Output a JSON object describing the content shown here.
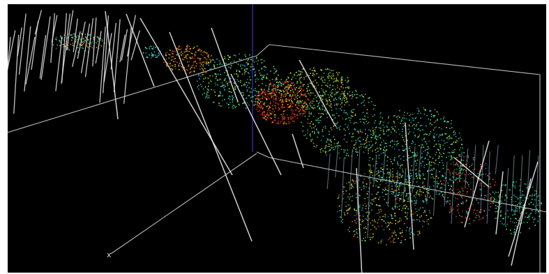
{
  "viewer": {
    "background": "#000000",
    "frame_color": "#d9d9d9",
    "drillhole_color": "#e6e6e6",
    "vertical_axis_color": "#2a2aa8",
    "axis_marker": "x"
  },
  "palette": [
    "#ff2a1a",
    "#ff6a1a",
    "#ffd21a",
    "#d6f01a",
    "#7ef04a",
    "#2ee6a8",
    "#26d8e8"
  ],
  "icons": {
    "axis_marker_icon": "x-glyph"
  }
}
